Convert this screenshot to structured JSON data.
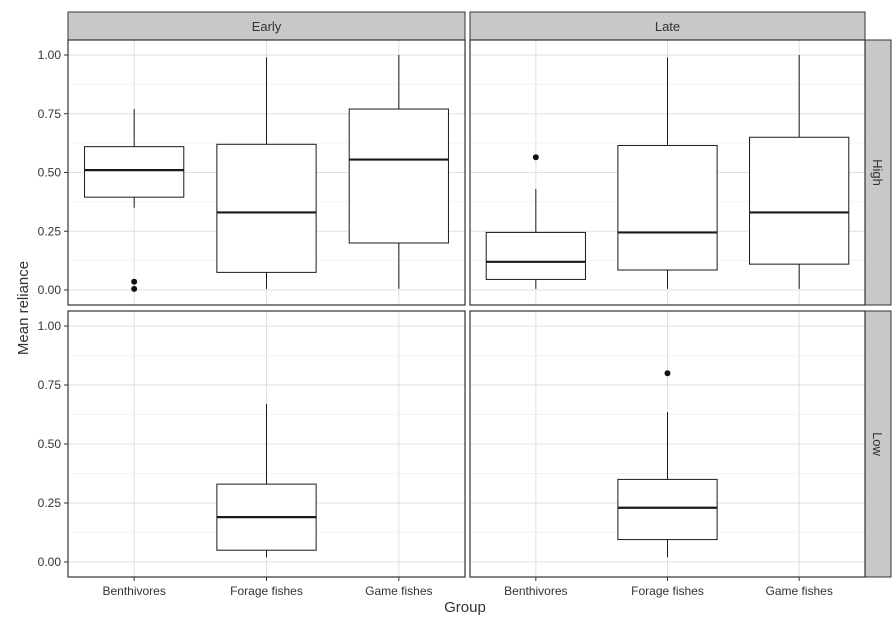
{
  "chart_data": {
    "type": "boxplot",
    "xlabel": "Group",
    "ylabel": "Mean reliance",
    "categories": [
      "Benthivores",
      "Forage fishes",
      "Game fishes"
    ],
    "ylim": [
      0,
      1
    ],
    "y_ticks": [
      "0.00",
      "0.25",
      "0.50",
      "0.75",
      "1.00"
    ],
    "column_facets": [
      "Early",
      "Late"
    ],
    "row_facets": [
      "High",
      "Low"
    ],
    "grid": true,
    "panels": [
      {
        "column": "Early",
        "row": "High",
        "boxes": [
          {
            "category": "Benthivores",
            "whisker_low": 0.35,
            "q1": 0.395,
            "median": 0.51,
            "q3": 0.61,
            "whisker_high": 0.77,
            "outliers": [
              0.035,
              0.005
            ]
          },
          {
            "category": "Forage fishes",
            "whisker_low": 0.005,
            "q1": 0.075,
            "median": 0.33,
            "q3": 0.62,
            "whisker_high": 0.99,
            "outliers": []
          },
          {
            "category": "Game fishes",
            "whisker_low": 0.005,
            "q1": 0.2,
            "median": 0.555,
            "q3": 0.77,
            "whisker_high": 1.0,
            "outliers": []
          }
        ]
      },
      {
        "column": "Late",
        "row": "High",
        "boxes": [
          {
            "category": "Benthivores",
            "whisker_low": 0.005,
            "q1": 0.045,
            "median": 0.12,
            "q3": 0.245,
            "whisker_high": 0.43,
            "outliers": [
              0.565
            ]
          },
          {
            "category": "Forage fishes",
            "whisker_low": 0.005,
            "q1": 0.085,
            "median": 0.245,
            "q3": 0.615,
            "whisker_high": 0.99,
            "outliers": []
          },
          {
            "category": "Game fishes",
            "whisker_low": 0.005,
            "q1": 0.11,
            "median": 0.33,
            "q3": 0.65,
            "whisker_high": 1.0,
            "outliers": []
          }
        ]
      },
      {
        "column": "Early",
        "row": "Low",
        "boxes": [
          {
            "category": "Forage fishes",
            "whisker_low": 0.02,
            "q1": 0.05,
            "median": 0.19,
            "q3": 0.33,
            "whisker_high": 0.67,
            "outliers": []
          }
        ]
      },
      {
        "column": "Late",
        "row": "Low",
        "boxes": [
          {
            "category": "Forage fishes",
            "whisker_low": 0.02,
            "q1": 0.095,
            "median": 0.23,
            "q3": 0.35,
            "whisker_high": 0.635,
            "outliers": [
              0.8
            ]
          }
        ]
      }
    ]
  }
}
